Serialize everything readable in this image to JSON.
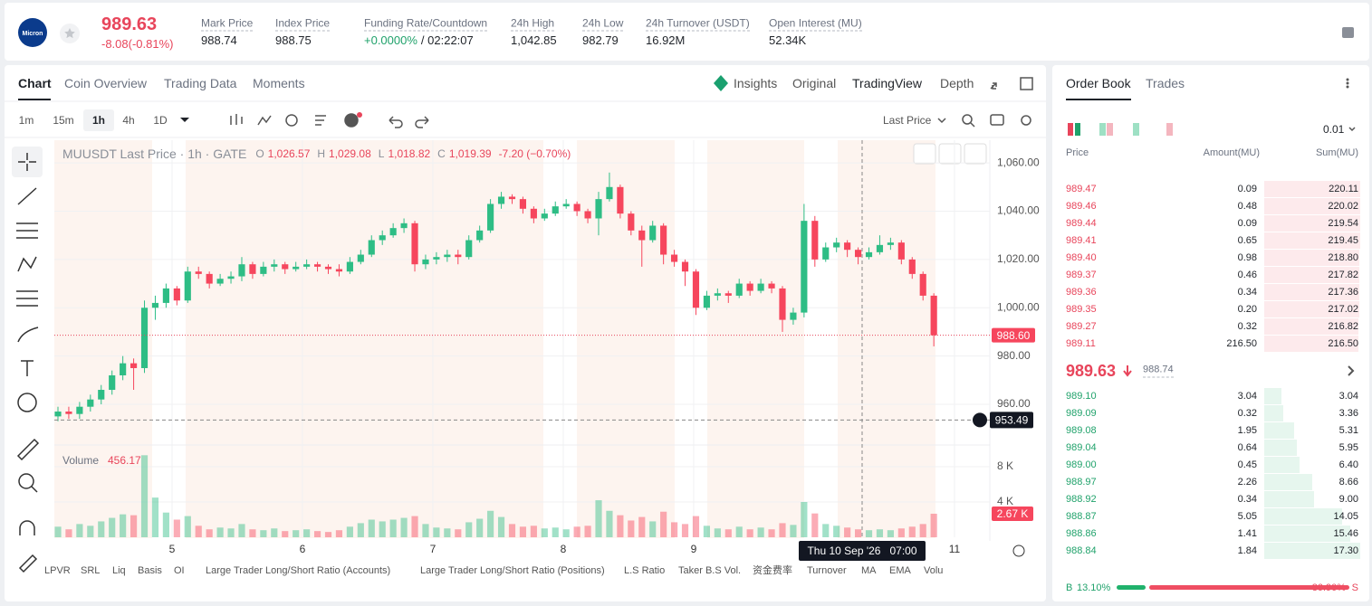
{
  "header": {
    "logo": "Micron",
    "price": "989.63",
    "change": "-8.08(-0.81%)",
    "stats": [
      {
        "label": "Mark Price",
        "value": "988.74"
      },
      {
        "label": "Index Price",
        "value": "988.75"
      },
      {
        "label": "Funding Rate/Countdown",
        "value": "+0.0000%",
        "countdown": "/ 02:22:07"
      },
      {
        "label": "24h High",
        "value": "1,042.85"
      },
      {
        "label": "24h Low",
        "value": "982.79"
      },
      {
        "label": "24h Turnover (USDT)",
        "value": "16.92M"
      },
      {
        "label": "Open Interest (MU)",
        "value": "52.34K"
      }
    ]
  },
  "tabs": [
    "Chart",
    "Coin Overview",
    "Trading Data",
    "Moments"
  ],
  "views": [
    "Insights",
    "Original",
    "TradingView",
    "Depth"
  ],
  "intervals": [
    "1m",
    "15m",
    "1h",
    "4h",
    "1D"
  ],
  "price_source": "Last Price",
  "chart_data": {
    "type": "candlestick",
    "title": "MUUSDT Last Price · 1h · GATE",
    "legend": [
      {
        "key": "O",
        "value": "1,026.57"
      },
      {
        "key": "H",
        "value": "1,029.08"
      },
      {
        "key": "L",
        "value": "1,018.82"
      },
      {
        "key": "C",
        "value": "1,019.39"
      }
    ],
    "legend_change": "-7.20 (−0.70%)",
    "up_color": "#2ebd85",
    "down_color": "#f6465d",
    "candles": [
      [
        955,
        959,
        953,
        957
      ],
      [
        957,
        959,
        954,
        956
      ],
      [
        956,
        961,
        954,
        959
      ],
      [
        959,
        964,
        957,
        962
      ],
      [
        962,
        968,
        960,
        966
      ],
      [
        966,
        974,
        964,
        972
      ],
      [
        972,
        980,
        970,
        977
      ],
      [
        977,
        979,
        966,
        975
      ],
      [
        975,
        1003,
        973,
        1000
      ],
      [
        1000,
        1005,
        995,
        1002
      ],
      [
        1002,
        1010,
        1000,
        1008
      ],
      [
        1008,
        1009,
        1001,
        1003
      ],
      [
        1003,
        1017,
        1002,
        1015
      ],
      [
        1015,
        1017,
        1012,
        1014
      ],
      [
        1014,
        1015,
        1008,
        1010
      ],
      [
        1010,
        1014,
        1009,
        1012
      ],
      [
        1012,
        1015,
        1010,
        1013
      ],
      [
        1013,
        1021,
        1011,
        1018
      ],
      [
        1018,
        1019,
        1012,
        1014
      ],
      [
        1014,
        1019,
        1013,
        1017
      ],
      [
        1017,
        1020,
        1015,
        1018
      ],
      [
        1018,
        1019,
        1014,
        1016
      ],
      [
        1016,
        1019,
        1015,
        1017
      ],
      [
        1017,
        1020,
        1016,
        1018
      ],
      [
        1018,
        1019,
        1015,
        1017
      ],
      [
        1017,
        1018,
        1014,
        1016
      ],
      [
        1016,
        1018,
        1013,
        1015
      ],
      [
        1015,
        1021,
        1014,
        1019
      ],
      [
        1019,
        1024,
        1018,
        1022
      ],
      [
        1022,
        1030,
        1021,
        1028
      ],
      [
        1028,
        1032,
        1026,
        1030
      ],
      [
        1030,
        1035,
        1029,
        1033
      ],
      [
        1033,
        1037,
        1031,
        1035
      ],
      [
        1035,
        1036,
        1015,
        1018
      ],
      [
        1018,
        1022,
        1016,
        1020
      ],
      [
        1020,
        1023,
        1018,
        1021
      ],
      [
        1021,
        1024,
        1019,
        1022
      ],
      [
        1022,
        1024,
        1018,
        1021
      ],
      [
        1021,
        1030,
        1020,
        1028
      ],
      [
        1028,
        1034,
        1027,
        1032
      ],
      [
        1032,
        1045,
        1031,
        1043
      ],
      [
        1043,
        1048,
        1041,
        1046
      ],
      [
        1046,
        1047,
        1043,
        1045
      ],
      [
        1045,
        1046,
        1039,
        1041
      ],
      [
        1041,
        1042,
        1035,
        1037
      ],
      [
        1037,
        1041,
        1036,
        1039
      ],
      [
        1039,
        1044,
        1038,
        1042
      ],
      [
        1042,
        1045,
        1041,
        1043
      ],
      [
        1043,
        1044,
        1038,
        1040
      ],
      [
        1040,
        1041,
        1035,
        1037
      ],
      [
        1037,
        1048,
        1030,
        1045
      ],
      [
        1045,
        1056,
        1044,
        1050
      ],
      [
        1050,
        1051,
        1037,
        1039
      ],
      [
        1039,
        1040,
        1030,
        1032
      ],
      [
        1032,
        1034,
        1017,
        1028
      ],
      [
        1028,
        1036,
        1027,
        1034
      ],
      [
        1034,
        1035,
        1018,
        1022
      ],
      [
        1022,
        1024,
        1017,
        1019
      ],
      [
        1019,
        1020,
        1009,
        1015
      ],
      [
        1015,
        1016,
        997,
        1000
      ],
      [
        1000,
        1007,
        999,
        1005
      ],
      [
        1005,
        1008,
        1003,
        1006
      ],
      [
        1006,
        1007,
        1002,
        1005
      ],
      [
        1005,
        1012,
        1004,
        1010
      ],
      [
        1010,
        1011,
        1005,
        1007
      ],
      [
        1007,
        1012,
        1006,
        1010
      ],
      [
        1010,
        1011,
        1006,
        1008
      ],
      [
        1008,
        1009,
        990,
        995
      ],
      [
        995,
        1000,
        993,
        998
      ],
      [
        998,
        1043,
        996,
        1036
      ],
      [
        1036,
        1038,
        1017,
        1020
      ],
      [
        1020,
        1027,
        1019,
        1025
      ],
      [
        1025,
        1029,
        1023,
        1027
      ],
      [
        1027,
        1028,
        1021,
        1024
      ],
      [
        1024,
        1025,
        1018,
        1021
      ],
      [
        1021,
        1025,
        1020,
        1023
      ],
      [
        1023,
        1030,
        1022,
        1026
      ],
      [
        1026,
        1029,
        1024,
        1027
      ],
      [
        1027,
        1028,
        1018,
        1020
      ],
      [
        1020,
        1021,
        1012,
        1014
      ],
      [
        1014,
        1015,
        1003,
        1005
      ],
      [
        1005,
        1006,
        984,
        988.6
      ]
    ],
    "volume_title": "Volume",
    "volume_value": "456.17",
    "volumes": [
      1200,
      900,
      1500,
      1300,
      1800,
      2200,
      2600,
      2500,
      9300,
      4500,
      2800,
      2000,
      2400,
      1300,
      900,
      1100,
      1000,
      1500,
      900,
      800,
      1000,
      700,
      800,
      900,
      700,
      600,
      800,
      1200,
      1600,
      2000,
      1800,
      2000,
      2200,
      2400,
      1500,
      1100,
      1000,
      900,
      1700,
      2100,
      3000,
      2300,
      1500,
      1200,
      1300,
      1000,
      1100,
      900,
      1200,
      1300,
      4200,
      3000,
      2500,
      1900,
      2300,
      1800,
      2900,
      1700,
      1500,
      2400,
      1300,
      1000,
      900,
      1200,
      900,
      1100,
      900,
      1600,
      1400,
      4000,
      2700,
      1500,
      1300,
      1100,
      900,
      800,
      900,
      800,
      1000,
      1200,
      1500,
      2670
    ],
    "xlim": [
      -0.335,
      86.18
    ],
    "xticks": [
      {
        "value": 10.55,
        "label": "5"
      },
      {
        "value": 22.61,
        "label": "6"
      },
      {
        "value": 34.67,
        "label": "7"
      },
      {
        "value": 46.73,
        "label": "8"
      },
      {
        "value": 58.79,
        "label": "9"
      },
      {
        "value": 82.91,
        "label": "11"
      }
    ],
    "ylim": [
      943.9,
      1069.4
    ],
    "yticks": [
      {
        "value": 960,
        "label": "960.00"
      },
      {
        "value": 980,
        "label": "980.00"
      },
      {
        "value": 1000,
        "label": "1,000.00"
      },
      {
        "value": 1020,
        "label": "1,020.00"
      },
      {
        "value": 1040,
        "label": "1,040.00"
      },
      {
        "value": 1060,
        "label": "1,060.00"
      }
    ],
    "vlim": [
      0,
      10154
    ],
    "vticks": [
      {
        "value": 4000,
        "label": "4 K"
      },
      {
        "value": 8000,
        "label": "8 K"
      }
    ],
    "last_price": {
      "value": 988.6,
      "label": "988.60"
    },
    "last_volume": {
      "value": 2670,
      "label": "2.67 K"
    },
    "crosshair": {
      "x": 74.37,
      "price": 953.49,
      "time_label": "Thu 10 Sep '26   07:00"
    }
  },
  "indicators": [
    "LPVR",
    "SRL",
    "Liq",
    "Basis",
    "OI",
    "Large Trader Long/Short Ratio (Accounts)",
    "Large Trader Long/Short Ratio (Positions)",
    "L.S Ratio",
    "Taker B.S Vol.",
    "资金费率",
    "Turnover",
    "MA",
    "EMA",
    "Volu"
  ],
  "order_book": {
    "tabs": [
      "Order Book",
      "Trades"
    ],
    "precision": "0.01",
    "columns": [
      "Price",
      "Amount(MU)",
      "Sum(MU)"
    ],
    "asks": [
      [
        "989.47",
        "0.09",
        "220.11"
      ],
      [
        "989.46",
        "0.48",
        "220.02"
      ],
      [
        "989.44",
        "0.09",
        "219.54"
      ],
      [
        "989.41",
        "0.65",
        "219.45"
      ],
      [
        "989.40",
        "0.98",
        "218.80"
      ],
      [
        "989.37",
        "0.46",
        "217.82"
      ],
      [
        "989.36",
        "0.34",
        "217.36"
      ],
      [
        "989.35",
        "0.20",
        "217.02"
      ],
      [
        "989.27",
        "0.32",
        "216.82"
      ],
      [
        "989.11",
        "216.50",
        "216.50"
      ]
    ],
    "last": "989.63",
    "mark": "988.74",
    "bids": [
      [
        "989.10",
        "3.04",
        "3.04"
      ],
      [
        "989.09",
        "0.32",
        "3.36"
      ],
      [
        "989.08",
        "1.95",
        "5.31"
      ],
      [
        "989.04",
        "0.64",
        "5.95"
      ],
      [
        "989.00",
        "0.45",
        "6.40"
      ],
      [
        "988.97",
        "2.26",
        "8.66"
      ],
      [
        "988.92",
        "0.34",
        "9.00"
      ],
      [
        "988.87",
        "5.05",
        "14.05"
      ],
      [
        "988.86",
        "1.41",
        "15.46"
      ],
      [
        "988.84",
        "1.84",
        "17.30"
      ]
    ],
    "buy_key": "B",
    "sell_key": "S",
    "buy_ratio": {
      "value": 13.1,
      "label": "13.10%"
    },
    "sell_ratio": {
      "value": 86.9,
      "label": "86.90%"
    }
  }
}
